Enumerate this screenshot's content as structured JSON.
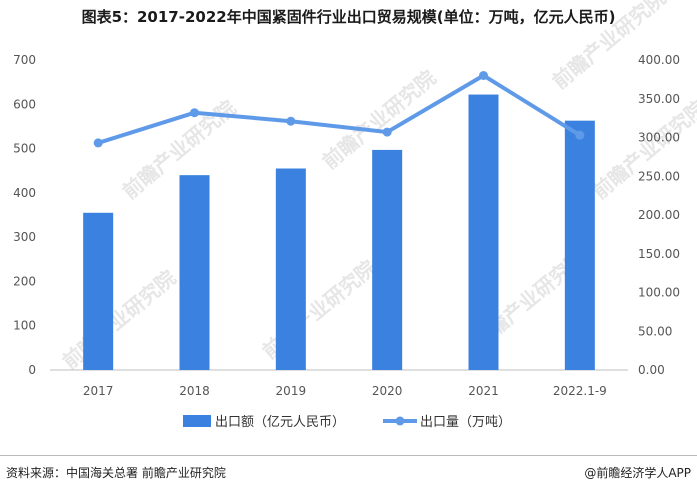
{
  "title": "图表5：2017-2022年中国紧固件行业出口贸易规模(单位：万吨，亿元人民币)",
  "source": "资料来源：中国海关总署 前瞻产业研究院",
  "credit": "@前瞻经济学人APP",
  "watermark": "前瞻产业研究院",
  "chart_data": {
    "type": "bar",
    "categories": [
      "2017",
      "2018",
      "2019",
      "2020",
      "2021",
      "2022.1-9"
    ],
    "series": [
      {
        "name": "出口额（亿元人民币）",
        "type": "bar",
        "axis": "left",
        "color": "#3b82e0",
        "values": [
          355,
          440,
          455,
          497,
          622,
          563
        ]
      },
      {
        "name": "出口量（万吨）",
        "type": "line",
        "axis": "right",
        "color": "#5f9ae8",
        "values": [
          293,
          332,
          321,
          307,
          380,
          303
        ]
      }
    ],
    "yleft": {
      "min": 0,
      "max": 700,
      "ticks": [
        "0",
        "100",
        "200",
        "300",
        "400",
        "500",
        "600",
        "700"
      ]
    },
    "yright": {
      "min": 0,
      "max": 400,
      "ticks": [
        "0.00",
        "50.00",
        "100.00",
        "150.00",
        "200.00",
        "250.00",
        "300.00",
        "350.00",
        "400.00"
      ]
    },
    "legend_position": "bottom",
    "grid": false
  }
}
